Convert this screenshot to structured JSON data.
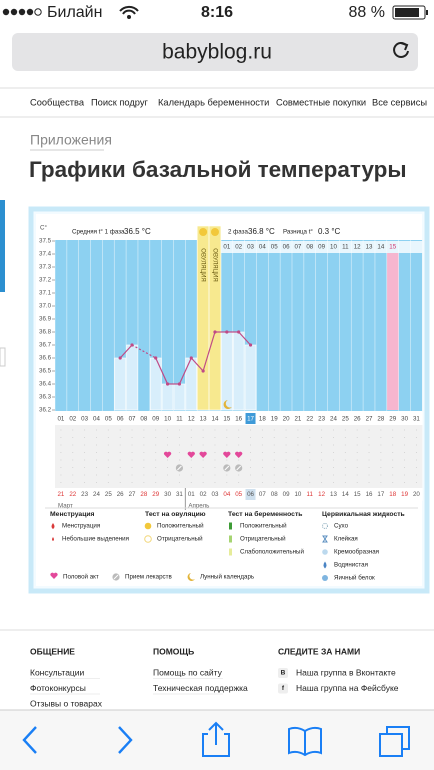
{
  "status_bar": {
    "carrier": "Билайн",
    "time": "8:16",
    "battery": "88 %"
  },
  "address_bar": {
    "url": "babyblog.ru"
  },
  "nav": [
    "Сообщества",
    "Поиск подруг",
    "Календарь беременности",
    "Совместные покупки",
    "Все сервисы"
  ],
  "breadcrumb": "Приложения",
  "title": "Графики базальной температуры",
  "bbt_chart": {
    "y_unit": "C°",
    "phase1_label": "Средняя t° 1 фаза",
    "phase1_avg": "36.5 °C",
    "phase2_label": "2 фаза",
    "phase2_avg": "36.8 °C",
    "diff_label": "Разница t°",
    "diff": "0.3 °C",
    "ovulation_label": "ОВУЛЯЦИЯ",
    "ylim": [
      36.2,
      37.5
    ],
    "yticks": [
      37.5,
      37.4,
      37.3,
      37.2,
      37.1,
      {
        "value": 37,
        "label": "37.0"
      },
      36.9,
      36.8,
      36.7,
      36.6,
      36.5,
      36.4,
      36.3,
      36.2
    ],
    "days": [
      "01",
      "02",
      "03",
      "04",
      "05",
      "06",
      "07",
      "08",
      "09",
      "10",
      "11",
      "12",
      "13",
      "14",
      "15",
      "16",
      "17",
      "18",
      "19",
      "20",
      "21",
      "22",
      "23",
      "24",
      "25",
      "26",
      "27",
      "28",
      "29",
      "30",
      "31"
    ],
    "cycle_days": [
      null,
      null,
      null,
      null,
      null,
      null,
      null,
      null,
      null,
      null,
      null,
      null,
      null,
      null,
      "01",
      "02",
      "03",
      "04",
      "05",
      "06",
      "07",
      "08",
      "09",
      "10",
      "11",
      "12",
      "13",
      "14",
      "15",
      null,
      null
    ],
    "dates": [
      "21",
      "22",
      "23",
      "24",
      "25",
      "26",
      "27",
      "28",
      "29",
      "30",
      "31",
      "01",
      "02",
      "03",
      "04",
      "05",
      "06",
      "07",
      "08",
      "09",
      "10",
      "11",
      "12",
      "13",
      "14",
      "15",
      "16",
      "17",
      "18",
      "19",
      "20"
    ],
    "months": [
      "Март",
      "Апрель"
    ],
    "temperatures": [
      null,
      null,
      null,
      null,
      null,
      36.6,
      36.7,
      null,
      36.6,
      36.4,
      36.4,
      36.6,
      36.5,
      36.8,
      36.8,
      36.8,
      36.7,
      null,
      null,
      null,
      null,
      null,
      null,
      null,
      null,
      null,
      null,
      null,
      null,
      null,
      null
    ],
    "ovulation_columns": [
      12,
      13
    ],
    "menstruation_columns": [
      28
    ],
    "intercourse_columns": [
      9,
      11,
      12,
      14,
      15
    ],
    "medication_columns": [
      10,
      14,
      15
    ],
    "moon_columns": [
      14
    ],
    "legend": [
      {
        "header": "Менструация",
        "items": [
          "Менструация",
          "Небольшие выделения"
        ]
      },
      {
        "header": "Тест на овуляцию",
        "items": [
          "Положительный",
          "Отрицательный"
        ]
      },
      {
        "header": "Тест на беременность",
        "items": [
          "Положительный",
          "Отрицательный",
          "Слабоположительный"
        ]
      },
      {
        "header": "Цервикальная жидкость",
        "items": [
          "Сухо",
          "Клейкая",
          "Кремообразная",
          "Водянистая",
          "Яичный белок"
        ]
      }
    ],
    "legend_bottom": [
      "Половой акт",
      "Прием лекарств",
      "Лунный календарь"
    ]
  },
  "footer": [
    {
      "header": "ОБЩЕНИЕ",
      "links": [
        "Консультации",
        "Фотоконкурсы",
        "Отзывы о товарах"
      ]
    },
    {
      "header": "ПОМОЩЬ",
      "links": [
        "Помощь по сайту",
        "Техническая поддержка"
      ]
    },
    {
      "header": "СЛЕДИТЕ ЗА НАМИ",
      "links": [
        "Наша группа в Вконтакте",
        "Наша группа на Фейсбуке"
      ],
      "icons": [
        "В",
        "f"
      ]
    }
  ]
}
